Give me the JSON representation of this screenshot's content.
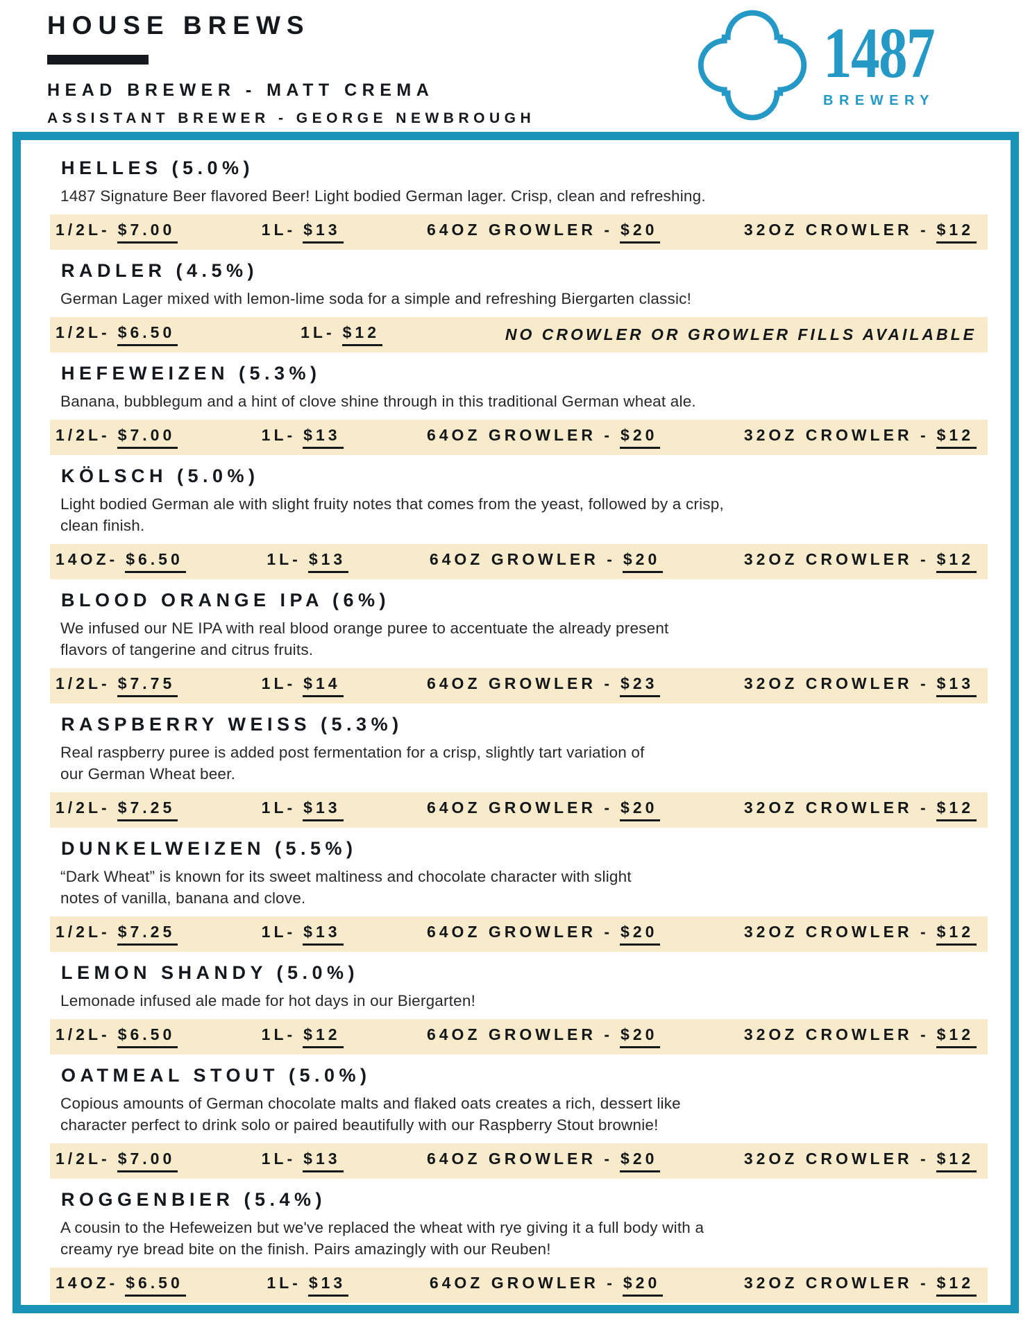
{
  "header": {
    "title": "HOUSE BREWS",
    "head_brewer": "HEAD BREWER - MATT CREMA",
    "assistant_brewer": "ASSISTANT BREWER - GEORGE NEWBROUGH"
  },
  "logo": {
    "number": "1487",
    "word": "BREWERY",
    "icon": "quatrefoil-icon"
  },
  "colors": {
    "border_teal": "#1b93b6",
    "logo_blue": "#2599c6",
    "price_bar_cream": "#f7ebcc",
    "ink": "#15181c"
  },
  "beers": [
    {
      "name": "HELLES (5.0%)",
      "description_lines": [
        "1487 Signature Beer flavored Beer! Light bodied German lager. Crisp, clean and refreshing."
      ],
      "prices": [
        {
          "size": "1/2L-",
          "price": "$7.00"
        },
        {
          "size": "1L-",
          "price": "$13"
        },
        {
          "size": "64OZ GROWLER -",
          "price": "$20"
        },
        {
          "size": "32OZ CROWLER -",
          "price": "$12"
        }
      ]
    },
    {
      "name": "RADLER (4.5%)",
      "description_lines": [
        "German Lager mixed with lemon-lime soda for a simple and refreshing Biergarten classic!"
      ],
      "prices": [
        {
          "size": "1/2L-",
          "price": "$6.50"
        },
        {
          "size": "1L-",
          "price": "$12"
        }
      ],
      "note": "NO CROWLER OR GROWLER FILLS AVAILABLE"
    },
    {
      "name": "HEFEWEIZEN (5.3%)",
      "description_lines": [
        "Banana, bubblegum and a hint of clove shine through in this traditional German wheat ale."
      ],
      "prices": [
        {
          "size": "1/2L-",
          "price": "$7.00"
        },
        {
          "size": "1L-",
          "price": "$13"
        },
        {
          "size": "64OZ GROWLER -",
          "price": "$20"
        },
        {
          "size": "32OZ CROWLER -",
          "price": "$12"
        }
      ]
    },
    {
      "name": "KÖLSCH (5.0%)",
      "description_lines": [
        "Light bodied German ale with slight fruity notes that comes from the yeast, followed by a crisp,",
        "clean finish."
      ],
      "prices": [
        {
          "size": "14OZ-",
          "price": "$6.50"
        },
        {
          "size": "1L-",
          "price": "$13"
        },
        {
          "size": "64OZ GROWLER -",
          "price": "$20"
        },
        {
          "size": "32OZ CROWLER -",
          "price": "$12"
        }
      ]
    },
    {
      "name": "BLOOD ORANGE IPA (6%)",
      "description_lines": [
        "We infused our NE IPA with real blood orange puree to accentuate the already present",
        "flavors of tangerine and citrus fruits."
      ],
      "prices": [
        {
          "size": "1/2L-",
          "price": "$7.75"
        },
        {
          "size": "1L-",
          "price": "$14"
        },
        {
          "size": "64OZ GROWLER -",
          "price": "$23"
        },
        {
          "size": "32OZ CROWLER -",
          "price": "$13"
        }
      ]
    },
    {
      "name": "RASPBERRY WEISS (5.3%)",
      "description_lines": [
        "Real raspberry puree is added post fermentation for a crisp, slightly tart variation of",
        "our German Wheat beer."
      ],
      "prices": [
        {
          "size": "1/2L-",
          "price": "$7.25"
        },
        {
          "size": "1L-",
          "price": "$13"
        },
        {
          "size": "64OZ GROWLER -",
          "price": "$20"
        },
        {
          "size": "32OZ CROWLER -",
          "price": "$12"
        }
      ]
    },
    {
      "name": "DUNKELWEIZEN (5.5%)",
      "description_lines": [
        "“Dark Wheat” is known for its sweet maltiness and chocolate character with slight",
        "notes of vanilla, banana and clove."
      ],
      "prices": [
        {
          "size": "1/2L-",
          "price": "$7.25"
        },
        {
          "size": "1L-",
          "price": "$13"
        },
        {
          "size": "64OZ GROWLER -",
          "price": "$20"
        },
        {
          "size": "32OZ CROWLER -",
          "price": "$12"
        }
      ]
    },
    {
      "name": "LEMON SHANDY (5.0%)",
      "description_lines": [
        "Lemonade infused ale made for hot days in our Biergarten!"
      ],
      "prices": [
        {
          "size": "1/2L-",
          "price": "$6.50"
        },
        {
          "size": "1L-",
          "price": "$12"
        },
        {
          "size": "64OZ GROWLER -",
          "price": "$20"
        },
        {
          "size": "32OZ CROWLER -",
          "price": "$12"
        }
      ]
    },
    {
      "name": "OATMEAL STOUT (5.0%)",
      "description_lines": [
        "Copious amounts of German chocolate malts and flaked oats creates a rich, dessert like",
        "character perfect to drink solo or paired beautifully with our Raspberry Stout brownie!"
      ],
      "prices": [
        {
          "size": "1/2L-",
          "price": "$7.00"
        },
        {
          "size": "1L-",
          "price": "$13"
        },
        {
          "size": "64OZ GROWLER -",
          "price": "$20"
        },
        {
          "size": "32OZ CROWLER -",
          "price": "$12"
        }
      ]
    },
    {
      "name": "ROGGENBIER (5.4%)",
      "description_lines": [
        "A cousin to the Hefeweizen but we've replaced the wheat with rye giving it a full body with a",
        "creamy rye bread bite on the finish. Pairs amazingly with our Reuben!"
      ],
      "prices": [
        {
          "size": "14OZ-",
          "price": "$6.50"
        },
        {
          "size": "1L-",
          "price": "$13"
        },
        {
          "size": "64OZ GROWLER -",
          "price": "$20"
        },
        {
          "size": "32OZ CROWLER -",
          "price": "$12"
        }
      ]
    }
  ]
}
